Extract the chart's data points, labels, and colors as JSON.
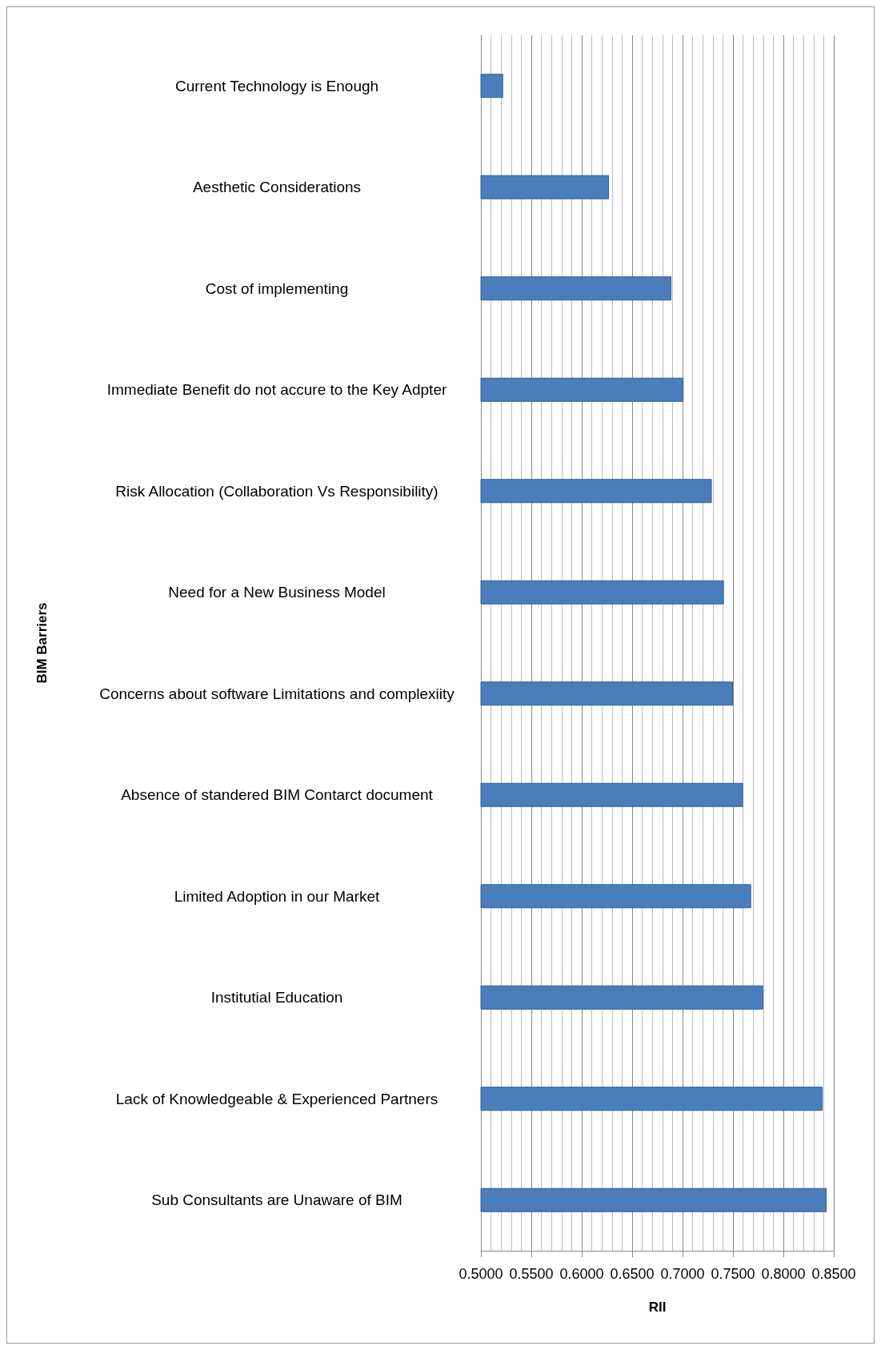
{
  "chart_data": {
    "type": "bar",
    "orientation": "horizontal",
    "xlabel": "RII",
    "ylabel": "BIM Barriers",
    "categories": [
      "Current Technology is Enough",
      "Aesthetic Considerations",
      "Cost of implementing",
      "Immediate Benefit do not accure to the Key Adpter",
      "Risk Allocation (Collaboration Vs Responsibility)",
      "Need for a New Business Model",
      "Concerns about software Limitations and complexiity",
      "Absence of standered BIM Contarct document",
      "Limited Adoption in our Market",
      "Institutial Education",
      "Lack of Knowledgeable & Experienced Partners",
      "Sub Consultants are Unaware of BIM"
    ],
    "values": [
      0.522,
      0.627,
      0.689,
      0.701,
      0.729,
      0.741,
      0.75,
      0.76,
      0.768,
      0.78,
      0.839,
      0.843
    ],
    "color": "#4a7ebb",
    "xlim": [
      0.5,
      0.85
    ],
    "xticks": [
      {
        "value": 0.5,
        "label": "0.5000"
      },
      {
        "value": 0.55,
        "label": "0.5500"
      },
      {
        "value": 0.6,
        "label": "0.6000"
      },
      {
        "value": 0.65,
        "label": "0.6500"
      },
      {
        "value": 0.7,
        "label": "0.7000"
      },
      {
        "value": 0.75,
        "label": "0.7500"
      },
      {
        "value": 0.8,
        "label": "0.8000"
      },
      {
        "value": 0.85,
        "label": "0.8500"
      }
    ],
    "grid": "x"
  }
}
